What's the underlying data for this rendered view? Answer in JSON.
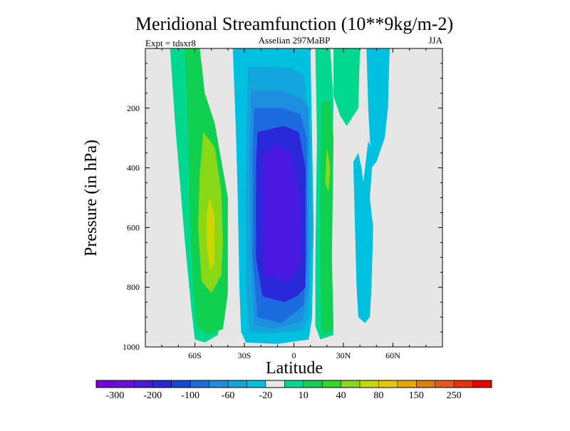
{
  "chart_data": {
    "type": "contour",
    "title": "Meridional Streamfunction (10**9kg/m-2)",
    "subtitle_left": "Expt = tdsxr8",
    "subtitle_center": "Asselian 297MaBP",
    "subtitle_right": "JJA",
    "xlabel": "Latitude",
    "ylabel": "Pressure (in hPa)",
    "xlim": [
      -90,
      90
    ],
    "ylim": [
      1000,
      0
    ],
    "x_ticks": [
      {
        "value": -60,
        "label": "60S"
      },
      {
        "value": -30,
        "label": "30S"
      },
      {
        "value": 0,
        "label": "0"
      },
      {
        "value": 30,
        "label": "30N"
      },
      {
        "value": 60,
        "label": "60N"
      }
    ],
    "y_ticks": [
      {
        "value": 200,
        "label": "200"
      },
      {
        "value": 400,
        "label": "400"
      },
      {
        "value": 600,
        "label": "600"
      },
      {
        "value": 800,
        "label": "800"
      },
      {
        "value": 1000,
        "label": "1000"
      }
    ],
    "colorbar": {
      "colors": [
        "#7c00d9",
        "#6a10e0",
        "#4a18e0",
        "#2828d8",
        "#1448d8",
        "#1c6ce0",
        "#1e8ee0",
        "#13a6dc",
        "#00c0e0",
        "#e6e6e6",
        "#00d890",
        "#10d050",
        "#30d828",
        "#88d818",
        "#c8d800",
        "#e8c800",
        "#e8a800",
        "#e08000",
        "#e85818",
        "#e83010",
        "#e80000"
      ],
      "labels": [
        "-300",
        "-200",
        "-100",
        "-60",
        "-20",
        "10",
        "40",
        "80",
        "150",
        "250"
      ]
    },
    "contour_regions": [
      {
        "name": "sh-outer-cell",
        "value": 10,
        "color": "#00d890",
        "outline": [
          [
            -75,
            0
          ],
          [
            -66,
            0
          ],
          [
            -62,
            150
          ],
          [
            -54,
            300
          ],
          [
            -46,
            550
          ],
          [
            -44,
            850
          ],
          [
            -46,
            960
          ],
          [
            -54,
            985
          ],
          [
            -60,
            975
          ],
          [
            -62,
            880
          ],
          [
            -66,
            650
          ],
          [
            -72,
            250
          ]
        ]
      },
      {
        "name": "sh-cell-40",
        "value": 40,
        "color": "#10d050",
        "outline": [
          [
            -66,
            0
          ],
          [
            -57,
            0
          ],
          [
            -54,
            150
          ],
          [
            -48,
            250
          ],
          [
            -40,
            500
          ],
          [
            -40,
            820
          ],
          [
            -43,
            940
          ],
          [
            -52,
            960
          ],
          [
            -59,
            930
          ],
          [
            -61,
            800
          ],
          [
            -63,
            600
          ],
          [
            -64,
            300
          ]
        ]
      },
      {
        "name": "sh-cell-80",
        "value": 80,
        "color": "#88d818",
        "outline": [
          [
            -55,
            280
          ],
          [
            -48,
            330
          ],
          [
            -44,
            480
          ],
          [
            -43,
            650
          ],
          [
            -44,
            760
          ],
          [
            -50,
            820
          ],
          [
            -56,
            780
          ],
          [
            -58,
            600
          ],
          [
            -57,
            420
          ]
        ]
      },
      {
        "name": "sh-cell-core",
        "value": 150,
        "color": "#c8d800",
        "outline": [
          [
            -51,
            500
          ],
          [
            -48,
            560
          ],
          [
            -48,
            720
          ],
          [
            -51,
            740
          ],
          [
            -53,
            660
          ],
          [
            -53,
            560
          ]
        ]
      },
      {
        "name": "hadley-20",
        "value": -20,
        "color": "#00c0e0",
        "outline": [
          [
            -37,
            0
          ],
          [
            0,
            0
          ],
          [
            3,
            0
          ],
          [
            7,
            0
          ],
          [
            10,
            0
          ],
          [
            11,
            300
          ],
          [
            12,
            600
          ],
          [
            11,
            900
          ],
          [
            9,
            975
          ],
          [
            -10,
            990
          ],
          [
            -29,
            985
          ],
          [
            -32,
            950
          ],
          [
            -33,
            800
          ],
          [
            -34,
            500
          ],
          [
            -35,
            300
          ]
        ]
      },
      {
        "name": "hadley-60",
        "value": -60,
        "color": "#13a6dc",
        "outline": [
          [
            -28,
            60
          ],
          [
            -2,
            65
          ],
          [
            6,
            90
          ],
          [
            10,
            300
          ],
          [
            11,
            600
          ],
          [
            9,
            900
          ],
          [
            5,
            945
          ],
          [
            -14,
            955
          ],
          [
            -27,
            950
          ],
          [
            -29,
            800
          ],
          [
            -29,
            400
          ]
        ]
      },
      {
        "name": "hadley-100",
        "value": -100,
        "color": "#1e8ee0",
        "outline": [
          [
            -26,
            140
          ],
          [
            -8,
            140
          ],
          [
            4,
            165
          ],
          [
            9,
            200
          ],
          [
            9,
            800
          ],
          [
            5,
            915
          ],
          [
            -12,
            940
          ],
          [
            -24,
            925
          ],
          [
            -26,
            700
          ],
          [
            -27,
            400
          ]
        ]
      },
      {
        "name": "hadley-150",
        "value": -150,
        "color": "#1c6ce0",
        "outline": [
          [
            -24,
            200
          ],
          [
            -7,
            200
          ],
          [
            4,
            220
          ],
          [
            8,
            300
          ],
          [
            8,
            700
          ],
          [
            6,
            860
          ],
          [
            2,
            880
          ],
          [
            -8,
            920
          ],
          [
            -22,
            900
          ],
          [
            -25,
            700
          ],
          [
            -25,
            350
          ]
        ]
      },
      {
        "name": "hadley-200",
        "value": -200,
        "color": "#2828d8",
        "outline": [
          [
            -22,
            280
          ],
          [
            -6,
            260
          ],
          [
            3,
            280
          ],
          [
            7,
            400
          ],
          [
            7,
            800
          ],
          [
            2,
            830
          ],
          [
            -6,
            850
          ],
          [
            -19,
            830
          ],
          [
            -23,
            700
          ],
          [
            -23,
            400
          ]
        ]
      },
      {
        "name": "hadley-core",
        "value": -300,
        "color": "#4a18e0",
        "outline": [
          [
            -19,
            360
          ],
          [
            -11,
            320
          ],
          [
            -1,
            360
          ],
          [
            4,
            500
          ],
          [
            4,
            720
          ],
          [
            -3,
            780
          ],
          [
            -18,
            760
          ],
          [
            -19,
            600
          ]
        ]
      },
      {
        "name": "nh-cell-green",
        "value": 10,
        "color": "#00d890",
        "outline": [
          [
            13,
            0
          ],
          [
            22,
            0
          ],
          [
            24,
            180
          ],
          [
            22,
            700
          ],
          [
            24,
            960
          ],
          [
            16,
            975
          ],
          [
            13,
            930
          ],
          [
            13,
            700
          ],
          [
            14,
            300
          ]
        ]
      },
      {
        "name": "nh-cell-40",
        "value": 40,
        "color": "#10d050",
        "outline": [
          [
            17,
            180
          ],
          [
            22,
            175
          ],
          [
            24,
            300
          ],
          [
            23,
            700
          ],
          [
            24,
            940
          ],
          [
            17,
            960
          ],
          [
            16,
            800
          ],
          [
            16,
            400
          ]
        ]
      },
      {
        "name": "nh-cell-80",
        "value": 80,
        "color": "#88d818",
        "outline": [
          [
            20,
            330
          ],
          [
            22,
            400
          ],
          [
            21,
            480
          ],
          [
            19,
            450
          ]
        ]
      },
      {
        "name": "nh-upper-10",
        "value": 10,
        "color": "#00d890",
        "outline": [
          [
            24,
            0
          ],
          [
            40,
            0
          ],
          [
            39,
            200
          ],
          [
            32,
            260
          ],
          [
            28,
            225
          ],
          [
            24,
            160
          ]
        ]
      },
      {
        "name": "nh-upper-neg",
        "value": -20,
        "color": "#00c0e0",
        "outline": [
          [
            44,
            0
          ],
          [
            58,
            0
          ],
          [
            57,
            200
          ],
          [
            55,
            300
          ],
          [
            50,
            380
          ],
          [
            47,
            400
          ],
          [
            46,
            300
          ],
          [
            45,
            200
          ]
        ]
      },
      {
        "name": "nh-lower-neg",
        "value": -20,
        "color": "#00c0e0",
        "outline": [
          [
            36,
            380
          ],
          [
            39,
            350
          ],
          [
            41,
            400
          ],
          [
            42,
            450
          ],
          [
            45,
            310
          ],
          [
            48,
            350
          ],
          [
            46,
            500
          ],
          [
            48,
            600
          ],
          [
            47,
            800
          ],
          [
            46,
            900
          ],
          [
            43,
            920
          ],
          [
            39,
            900
          ],
          [
            38,
            800
          ],
          [
            37,
            600
          ]
        ]
      }
    ]
  }
}
